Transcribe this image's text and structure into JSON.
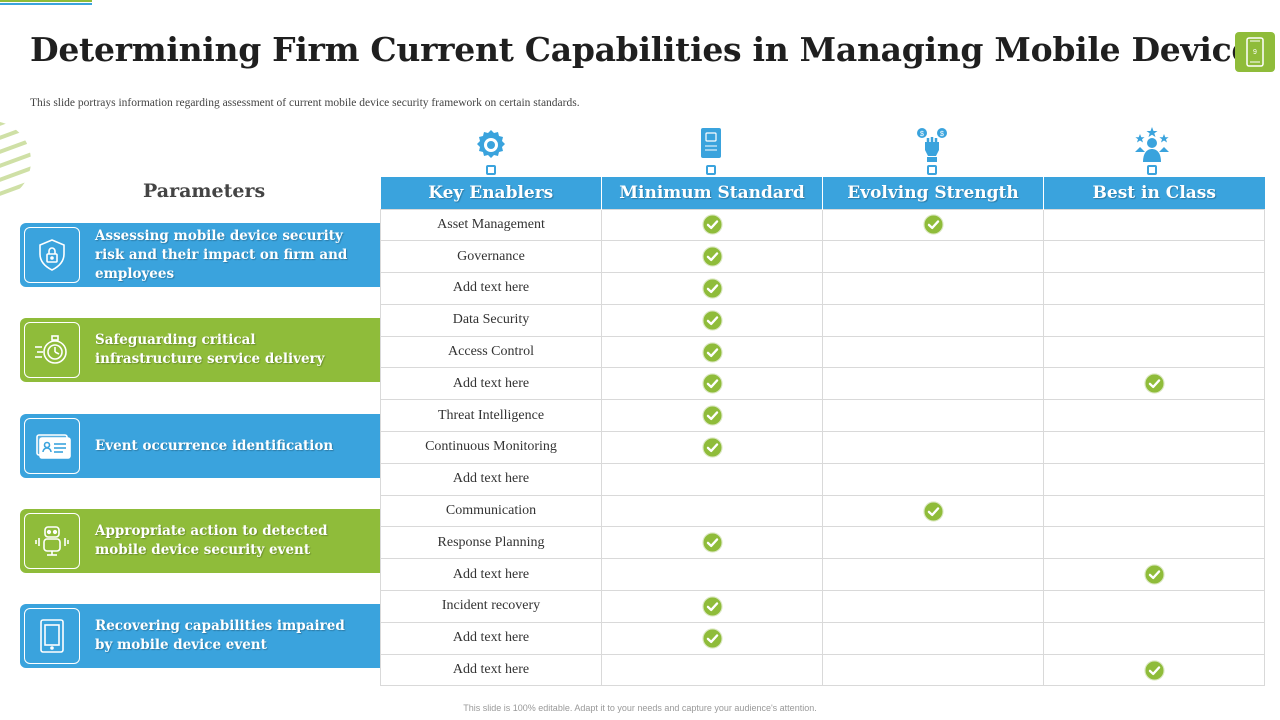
{
  "title": "Determining Firm Current Capabilities in Managing Mobile Devices",
  "subtitle": "This slide portrays information regarding assessment of current mobile device security framework on certain standards.",
  "page_number": "9",
  "params_heading": "Parameters",
  "parameters": [
    {
      "text": "Assessing mobile device security risk and their impact on firm and employees",
      "icon": "shield-lock-icon",
      "color": "#3aa3dd"
    },
    {
      "text": "Safeguarding critical infrastructure service delivery",
      "icon": "stopwatch-icon",
      "color": "#8fbc3a"
    },
    {
      "text": "Event occurrence identification",
      "icon": "id-card-icon",
      "color": "#3aa3dd"
    },
    {
      "text": "Appropriate action to detected mobile device security event",
      "icon": "robot-icon",
      "color": "#8fbc3a"
    },
    {
      "text": "Recovering capabilities impaired by mobile device event",
      "icon": "tablet-icon",
      "color": "#3aa3dd"
    }
  ],
  "table": {
    "headers": [
      "Key Enablers",
      "Minimum Standard",
      "Evolving Strength",
      "Best in Class"
    ],
    "header_icons": [
      "brain-gear-icon",
      "book-icon",
      "hand-coins-icon",
      "team-star-icon"
    ],
    "rows": [
      {
        "label": "Asset Management",
        "minimum": true,
        "evolving": true,
        "best": false
      },
      {
        "label": "Governance",
        "minimum": true,
        "evolving": false,
        "best": false
      },
      {
        "label": "Add text here",
        "minimum": true,
        "evolving": false,
        "best": false
      },
      {
        "label": "Data Security",
        "minimum": true,
        "evolving": false,
        "best": false
      },
      {
        "label": "Access Control",
        "minimum": true,
        "evolving": false,
        "best": false
      },
      {
        "label": "Add text here",
        "minimum": true,
        "evolving": false,
        "best": true
      },
      {
        "label": "Threat Intelligence",
        "minimum": true,
        "evolving": false,
        "best": false
      },
      {
        "label": "Continuous Monitoring",
        "minimum": true,
        "evolving": false,
        "best": false
      },
      {
        "label": "Add text here",
        "minimum": false,
        "evolving": false,
        "best": false
      },
      {
        "label": "Communication",
        "minimum": false,
        "evolving": true,
        "best": false
      },
      {
        "label": "Response Planning",
        "minimum": true,
        "evolving": false,
        "best": false
      },
      {
        "label": "Add text here",
        "minimum": false,
        "evolving": false,
        "best": true
      },
      {
        "label": "Incident recovery",
        "minimum": true,
        "evolving": false,
        "best": false
      },
      {
        "label": "Add text here",
        "minimum": true,
        "evolving": false,
        "best": false
      },
      {
        "label": "Add text here",
        "minimum": false,
        "evolving": false,
        "best": true
      }
    ]
  },
  "footer": "This slide is 100% editable. Adapt it to your needs and capture your audience's attention.",
  "colors": {
    "blue": "#3aa3dd",
    "green": "#8fbc3a",
    "check": "#8fbc3a"
  }
}
